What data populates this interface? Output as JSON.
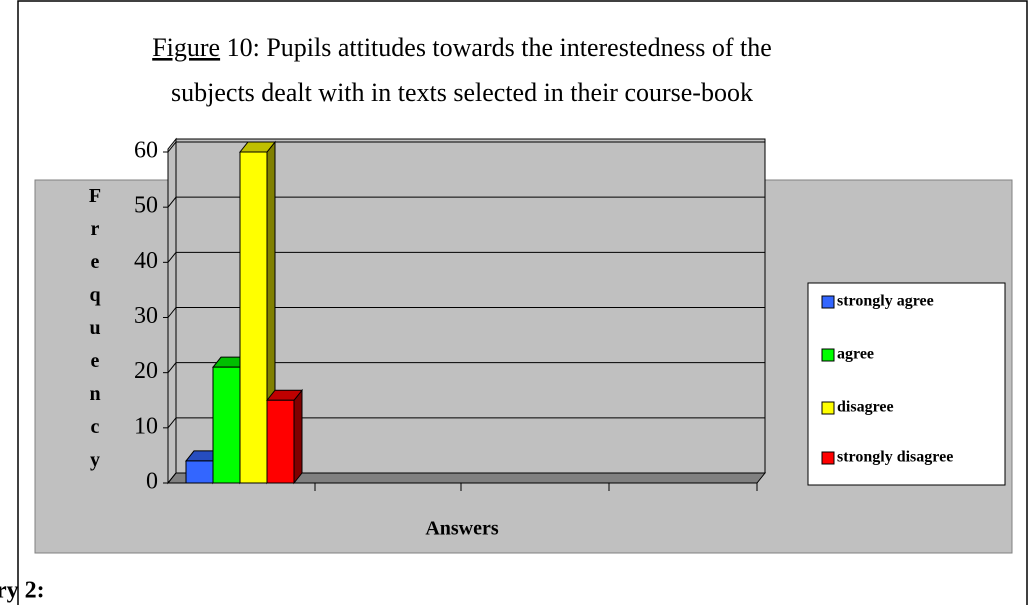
{
  "chart_data": {
    "type": "bar3d",
    "title": [
      "Figure",
      " 10: Pupils attitudes towards the interestedness of the",
      "subjects dealt with in texts selected in their course-book"
    ],
    "y_label": "Frequency",
    "x_label": "Answers",
    "categories": [
      null
    ],
    "series": [
      {
        "name": "strongly agree",
        "color": "#3366ff",
        "values": [
          4
        ]
      },
      {
        "name": "agree",
        "color": "#00ff00",
        "values": [
          21
        ]
      },
      {
        "name": "disagree",
        "color": "#ffff00",
        "values": [
          60
        ]
      },
      {
        "name": "strongly disagree",
        "color": "#ff0000",
        "values": [
          15
        ]
      }
    ],
    "ylim": [
      0,
      60
    ],
    "yticks": [
      0,
      10,
      20,
      30,
      40,
      50,
      60
    ],
    "grid": true,
    "legend": "right",
    "note": "ry 2:"
  }
}
